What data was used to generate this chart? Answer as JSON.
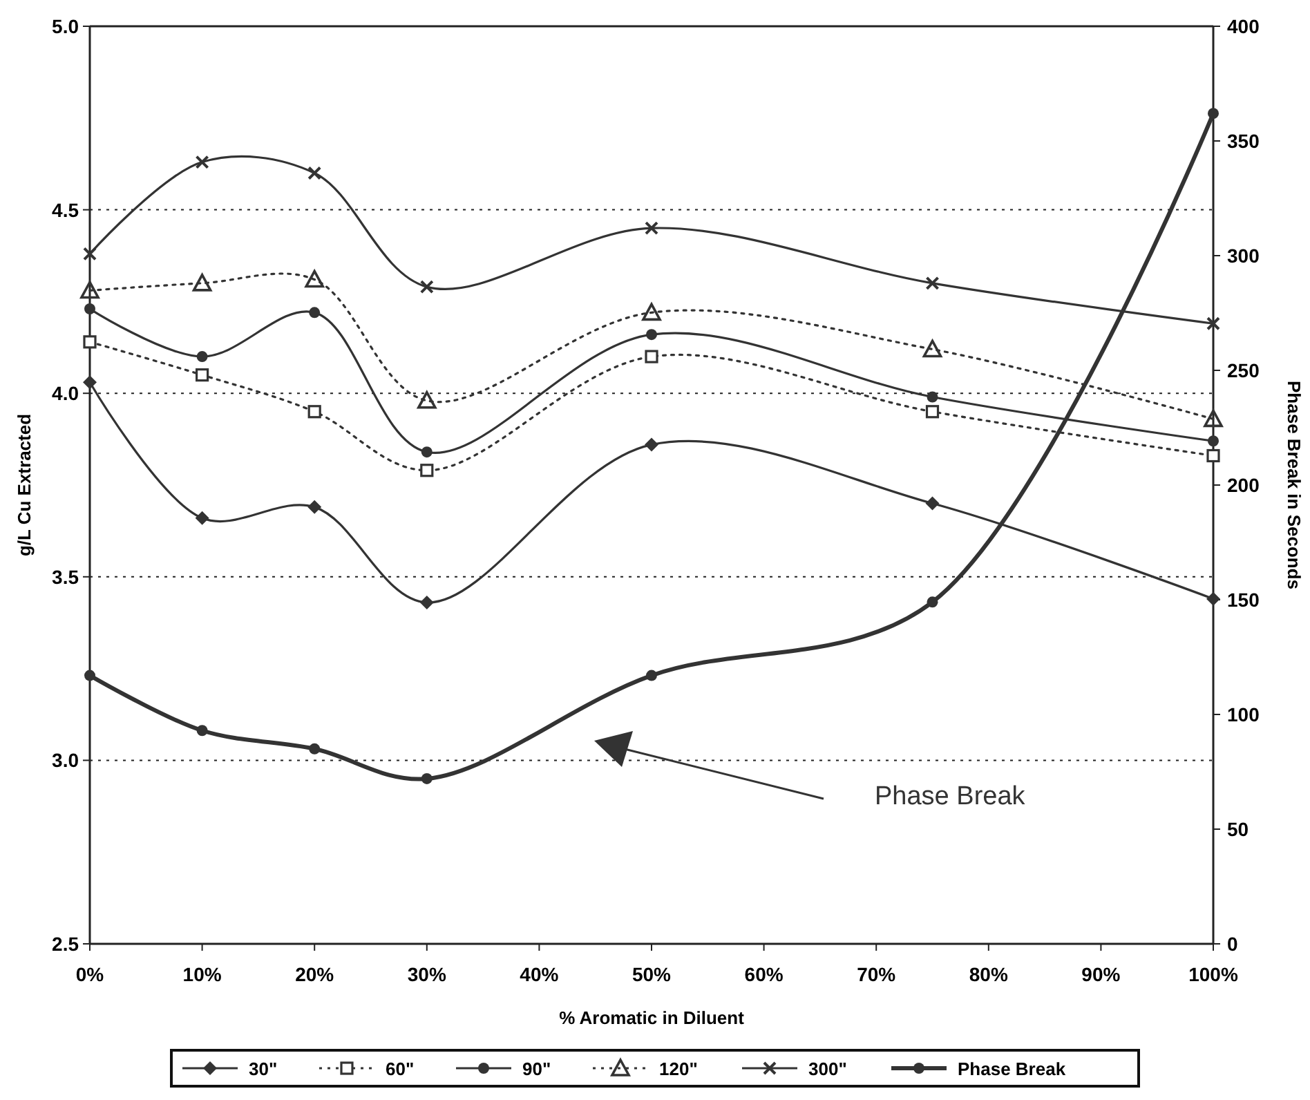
{
  "chart_data": {
    "type": "line",
    "xlabel": "% Aromatic in Diluent",
    "ylabel": "g/L Cu Extracted",
    "y2label": "Phase Break in Seconds",
    "x": [
      0,
      10,
      20,
      30,
      50,
      75,
      100
    ],
    "xlim": [
      0,
      100
    ],
    "xticks": [
      {
        "value": 0,
        "label": "0%"
      },
      {
        "value": 10,
        "label": "10%"
      },
      {
        "value": 20,
        "label": "20%"
      },
      {
        "value": 30,
        "label": "30%"
      },
      {
        "value": 40,
        "label": "40%"
      },
      {
        "value": 50,
        "label": "50%"
      },
      {
        "value": 60,
        "label": "60%"
      },
      {
        "value": 70,
        "label": "70%"
      },
      {
        "value": 80,
        "label": "80%"
      },
      {
        "value": 90,
        "label": "90%"
      },
      {
        "value": 100,
        "label": "100%"
      }
    ],
    "ylim": [
      2.5,
      5.0
    ],
    "yticks": [
      2.5,
      {
        "value": 3,
        "label": "3.0"
      },
      3.5,
      {
        "value": 4,
        "label": "4.0"
      },
      4.5,
      {
        "value": 5,
        "label": "5.0"
      }
    ],
    "y2lim": [
      0,
      400
    ],
    "y2ticks": [
      0,
      50,
      100,
      150,
      200,
      250,
      300,
      350,
      400
    ],
    "grid": "y",
    "legend": "bottom",
    "annotations": [
      "Phase Break"
    ],
    "series": [
      {
        "name": "30\"",
        "color": "#333333",
        "marker": "diamond",
        "line_style": "solid",
        "values": [
          4.03,
          3.66,
          3.69,
          3.43,
          3.86,
          3.7,
          3.44
        ]
      },
      {
        "name": "60\"",
        "color": "#333333",
        "marker": "square",
        "line_style": "dotted",
        "values": [
          4.14,
          4.05,
          3.95,
          3.79,
          4.1,
          3.95,
          3.83
        ]
      },
      {
        "name": "90\"",
        "color": "#333333",
        "marker": "circle",
        "line_style": "solid",
        "values": [
          4.23,
          4.1,
          4.22,
          3.84,
          4.16,
          3.99,
          3.87
        ]
      },
      {
        "name": "120\"",
        "color": "#333333",
        "marker": "triangle",
        "line_style": "dotted",
        "values": [
          4.28,
          4.3,
          4.31,
          3.98,
          4.22,
          4.12,
          3.93
        ]
      },
      {
        "name": "300\"",
        "color": "#333333",
        "marker": "cross",
        "line_style": "solid",
        "values": [
          4.38,
          4.63,
          4.6,
          4.29,
          4.45,
          4.3,
          4.19
        ]
      },
      {
        "name": "Phase Break",
        "color": "#333333",
        "marker": "circle",
        "line_style": "solid",
        "axis": "y2",
        "values": [
          117,
          93,
          85,
          72,
          117,
          149,
          362
        ]
      }
    ]
  }
}
